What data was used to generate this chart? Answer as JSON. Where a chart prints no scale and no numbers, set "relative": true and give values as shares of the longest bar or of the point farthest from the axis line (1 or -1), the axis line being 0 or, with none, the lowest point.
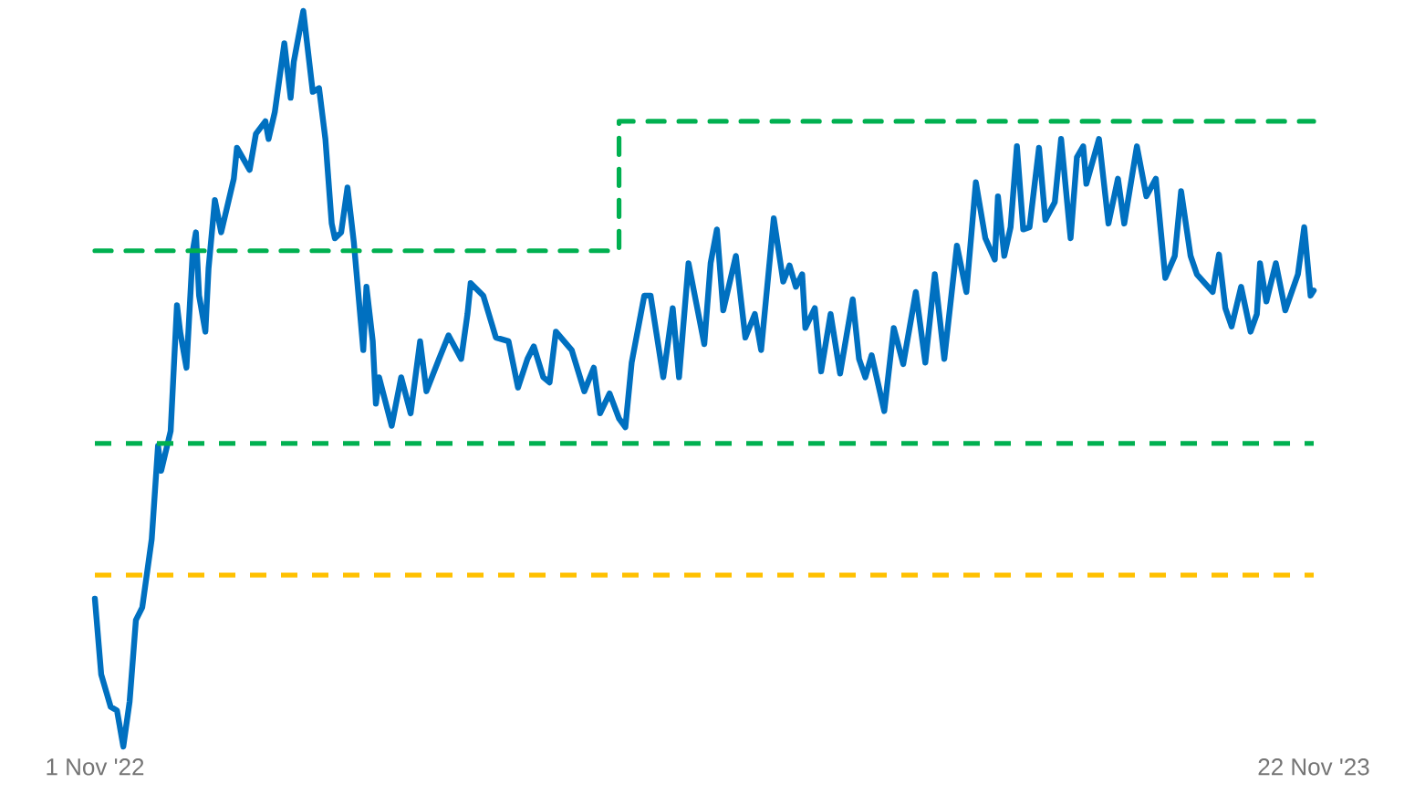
{
  "chart_data": {
    "type": "line",
    "relative": true,
    "xlim": [
      "2022-11-01",
      "2023-11-22"
    ],
    "xticks": [
      {
        "value": "2022-11-01",
        "label": "1 Nov '22"
      },
      {
        "value": "2023-11-22",
        "label": "22 Nov '23"
      }
    ],
    "series": [
      {
        "type": "line",
        "color": "#0070c0",
        "x": [
          "2022-11-01",
          "2022-11-03",
          "2022-11-06",
          "2022-11-08",
          "2022-11-10",
          "2022-11-12",
          "2022-11-14",
          "2022-11-16",
          "2022-11-19",
          "2022-11-21",
          "2022-11-22",
          "2022-11-25",
          "2022-11-26",
          "2022-11-27",
          "2022-11-28",
          "2022-11-30",
          "2022-12-02",
          "2022-12-03",
          "2022-12-04",
          "2022-12-06",
          "2022-12-07",
          "2022-12-09",
          "2022-12-11",
          "2022-12-15",
          "2022-12-16",
          "2022-12-20",
          "2022-12-22",
          "2022-12-25",
          "2022-12-26",
          "2022-12-28",
          "2022-12-31",
          "2023-01-02",
          "2023-01-03",
          "2023-01-06",
          "2023-01-09",
          "2023-01-11",
          "2023-01-13",
          "2023-01-15",
          "2023-01-16",
          "2023-01-18",
          "2023-01-20",
          "2023-01-22",
          "2023-01-25",
          "2023-01-26",
          "2023-01-28",
          "2023-01-29",
          "2023-01-30",
          "2023-02-03",
          "2023-02-06",
          "2023-02-09",
          "2023-02-12",
          "2023-02-14",
          "2023-02-18",
          "2023-02-21",
          "2023-02-25",
          "2023-02-27",
          "2023-02-28",
          "2023-03-04",
          "2023-03-08",
          "2023-03-12",
          "2023-03-15",
          "2023-03-18",
          "2023-03-20",
          "2023-03-23",
          "2023-03-25",
          "2023-03-27",
          "2023-04-01",
          "2023-04-05",
          "2023-04-08",
          "2023-04-10",
          "2023-04-13",
          "2023-04-16",
          "2023-04-18",
          "2023-04-20",
          "2023-04-24",
          "2023-04-26",
          "2023-04-30",
          "2023-05-03",
          "2023-05-05",
          "2023-05-08",
          "2023-05-13",
          "2023-05-15",
          "2023-05-17",
          "2023-05-19",
          "2023-05-23",
          "2023-05-26",
          "2023-05-29",
          "2023-05-31",
          "2023-06-04",
          "2023-06-07",
          "2023-06-09",
          "2023-06-11",
          "2023-06-13",
          "2023-06-14",
          "2023-06-17",
          "2023-06-19",
          "2023-06-22",
          "2023-06-25",
          "2023-06-29",
          "2023-07-01",
          "2023-07-03",
          "2023-07-05",
          "2023-07-09",
          "2023-07-12",
          "2023-07-15",
          "2023-07-19",
          "2023-07-22",
          "2023-07-25",
          "2023-07-28",
          "2023-08-01",
          "2023-08-04",
          "2023-08-07",
          "2023-08-10",
          "2023-08-13",
          "2023-08-14",
          "2023-08-16",
          "2023-08-18",
          "2023-08-20",
          "2023-08-22",
          "2023-08-24",
          "2023-08-27",
          "2023-08-29",
          "2023-09-01",
          "2023-09-03",
          "2023-09-06",
          "2023-09-08",
          "2023-09-10",
          "2023-09-11",
          "2023-09-15",
          "2023-09-18",
          "2023-09-21",
          "2023-09-23",
          "2023-09-27",
          "2023-09-30",
          "2023-10-03",
          "2023-10-06",
          "2023-10-09",
          "2023-10-11",
          "2023-10-14",
          "2023-10-16",
          "2023-10-21",
          "2023-10-23",
          "2023-10-25",
          "2023-10-27",
          "2023-10-30",
          "2023-11-02",
          "2023-11-04",
          "2023-11-05",
          "2023-11-07",
          "2023-11-10",
          "2023-11-13",
          "2023-11-17",
          "2023-11-19",
          "2023-11-21",
          "2023-11-22"
        ],
        "values": [
          0.201,
          0.098,
          0.054,
          0.049,
          0,
          0.061,
          0.172,
          0.189,
          0.282,
          0.409,
          0.375,
          0.429,
          0.515,
          0.6,
          0.564,
          0.515,
          0.674,
          0.699,
          0.613,
          0.564,
          0.65,
          0.743,
          0.699,
          0.772,
          0.814,
          0.784,
          0.833,
          0.85,
          0.826,
          0.863,
          0.956,
          0.882,
          0.931,
          1.0,
          0.89,
          0.895,
          0.826,
          0.711,
          0.691,
          0.699,
          0.76,
          0.686,
          0.539,
          0.625,
          0.551,
          0.466,
          0.502,
          0.436,
          0.502,
          0.453,
          0.551,
          0.483,
          0.527,
          0.559,
          0.527,
          0.588,
          0.63,
          0.613,
          0.556,
          0.551,
          0.488,
          0.527,
          0.544,
          0.502,
          0.495,
          0.564,
          0.539,
          0.483,
          0.515,
          0.453,
          0.48,
          0.446,
          0.434,
          0.522,
          0.613,
          0.613,
          0.502,
          0.596,
          0.502,
          0.657,
          0.547,
          0.657,
          0.703,
          0.593,
          0.667,
          0.556,
          0.588,
          0.539,
          0.718,
          0.632,
          0.654,
          0.625,
          0.642,
          0.569,
          0.596,
          0.51,
          0.588,
          0.507,
          0.608,
          0.527,
          0.502,
          0.532,
          0.456,
          0.569,
          0.52,
          0.618,
          0.522,
          0.642,
          0.527,
          0.681,
          0.618,
          0.767,
          0.691,
          0.662,
          0.748,
          0.667,
          0.706,
          0.816,
          0.703,
          0.706,
          0.814,
          0.716,
          0.74,
          0.826,
          0.691,
          0.801,
          0.816,
          0.765,
          0.826,
          0.711,
          0.772,
          0.711,
          0.816,
          0.748,
          0.772,
          0.637,
          0.667,
          0.755,
          0.667,
          0.642,
          0.618,
          0.669,
          0.596,
          0.571,
          0.625,
          0.564,
          0.588,
          0.657,
          0.605,
          0.657,
          0.593,
          0.642,
          0.706,
          0.613,
          0.62
        ]
      },
      {
        "type": "step",
        "color": "#00b050",
        "line_style": "dashed",
        "x": [
          "2022-11-01",
          "2023-04-16",
          "2023-11-22"
        ],
        "values": [
          0.674,
          0.85,
          0.85
        ]
      }
    ],
    "ref_lines": [
      {
        "axis": "y",
        "value": 0.412,
        "color": "#00b050",
        "line_style": "dashed"
      },
      {
        "axis": "y",
        "value": 0.233,
        "color": "#ffc000",
        "line_style": "dashed"
      }
    ]
  }
}
